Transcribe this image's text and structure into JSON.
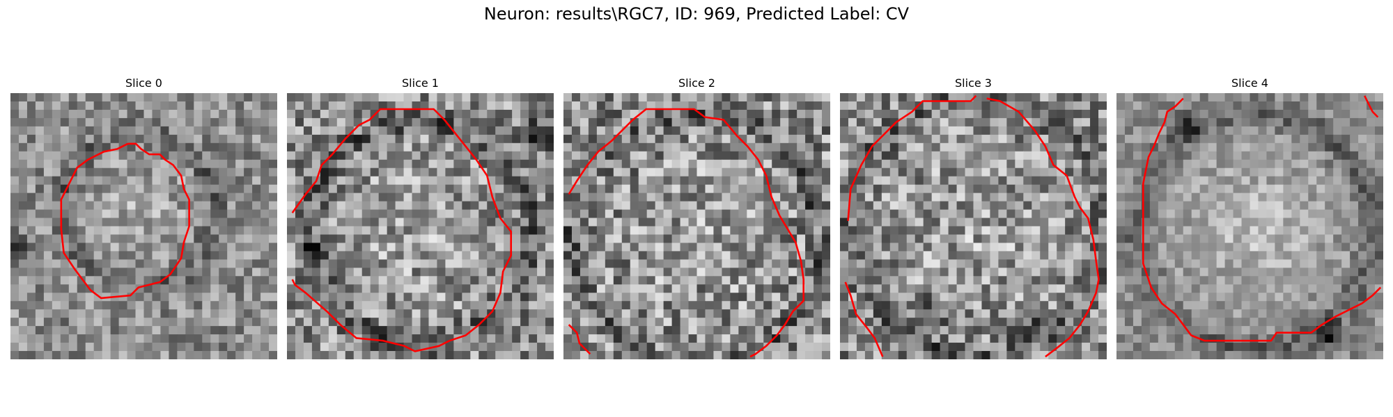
{
  "figure": {
    "title": "Neuron: results\\RGC7, ID: 969, Predicted Label: CV"
  },
  "panels": [
    {
      "label": "Slice 0"
    },
    {
      "label": "Slice 1"
    },
    {
      "label": "Slice 2"
    },
    {
      "label": "Slice 3"
    },
    {
      "label": "Slice 4"
    }
  ],
  "colors": {
    "contour": "#ff0000",
    "background": "#ffffff"
  }
}
